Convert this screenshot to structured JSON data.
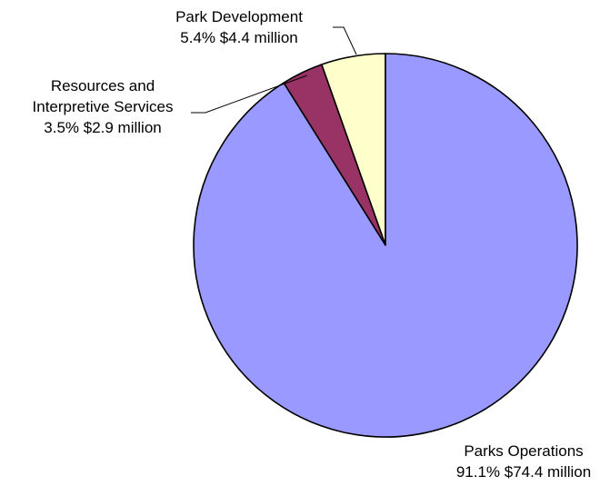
{
  "chart_data": {
    "type": "pie",
    "title": "",
    "start": "top",
    "direction": "counterclockwise",
    "slices": [
      {
        "name": "Park Development",
        "percent": 5.4,
        "value_millions": 4.4,
        "label_lines": [
          "Park Development",
          "5.4% $4.4 million"
        ],
        "color": "#FFFFCC"
      },
      {
        "name": "Resources and Interpretive Services",
        "percent": 3.5,
        "value_millions": 2.9,
        "label_lines": [
          "Resources and",
          "Interpretive Services",
          "3.5% $2.9 million"
        ],
        "color": "#993366"
      },
      {
        "name": "Parks Operations",
        "percent": 91.1,
        "value_millions": 74.4,
        "label_lines": [
          "Parks Operations",
          "91.1% $74.4 million"
        ],
        "color": "#9999FF"
      }
    ]
  }
}
